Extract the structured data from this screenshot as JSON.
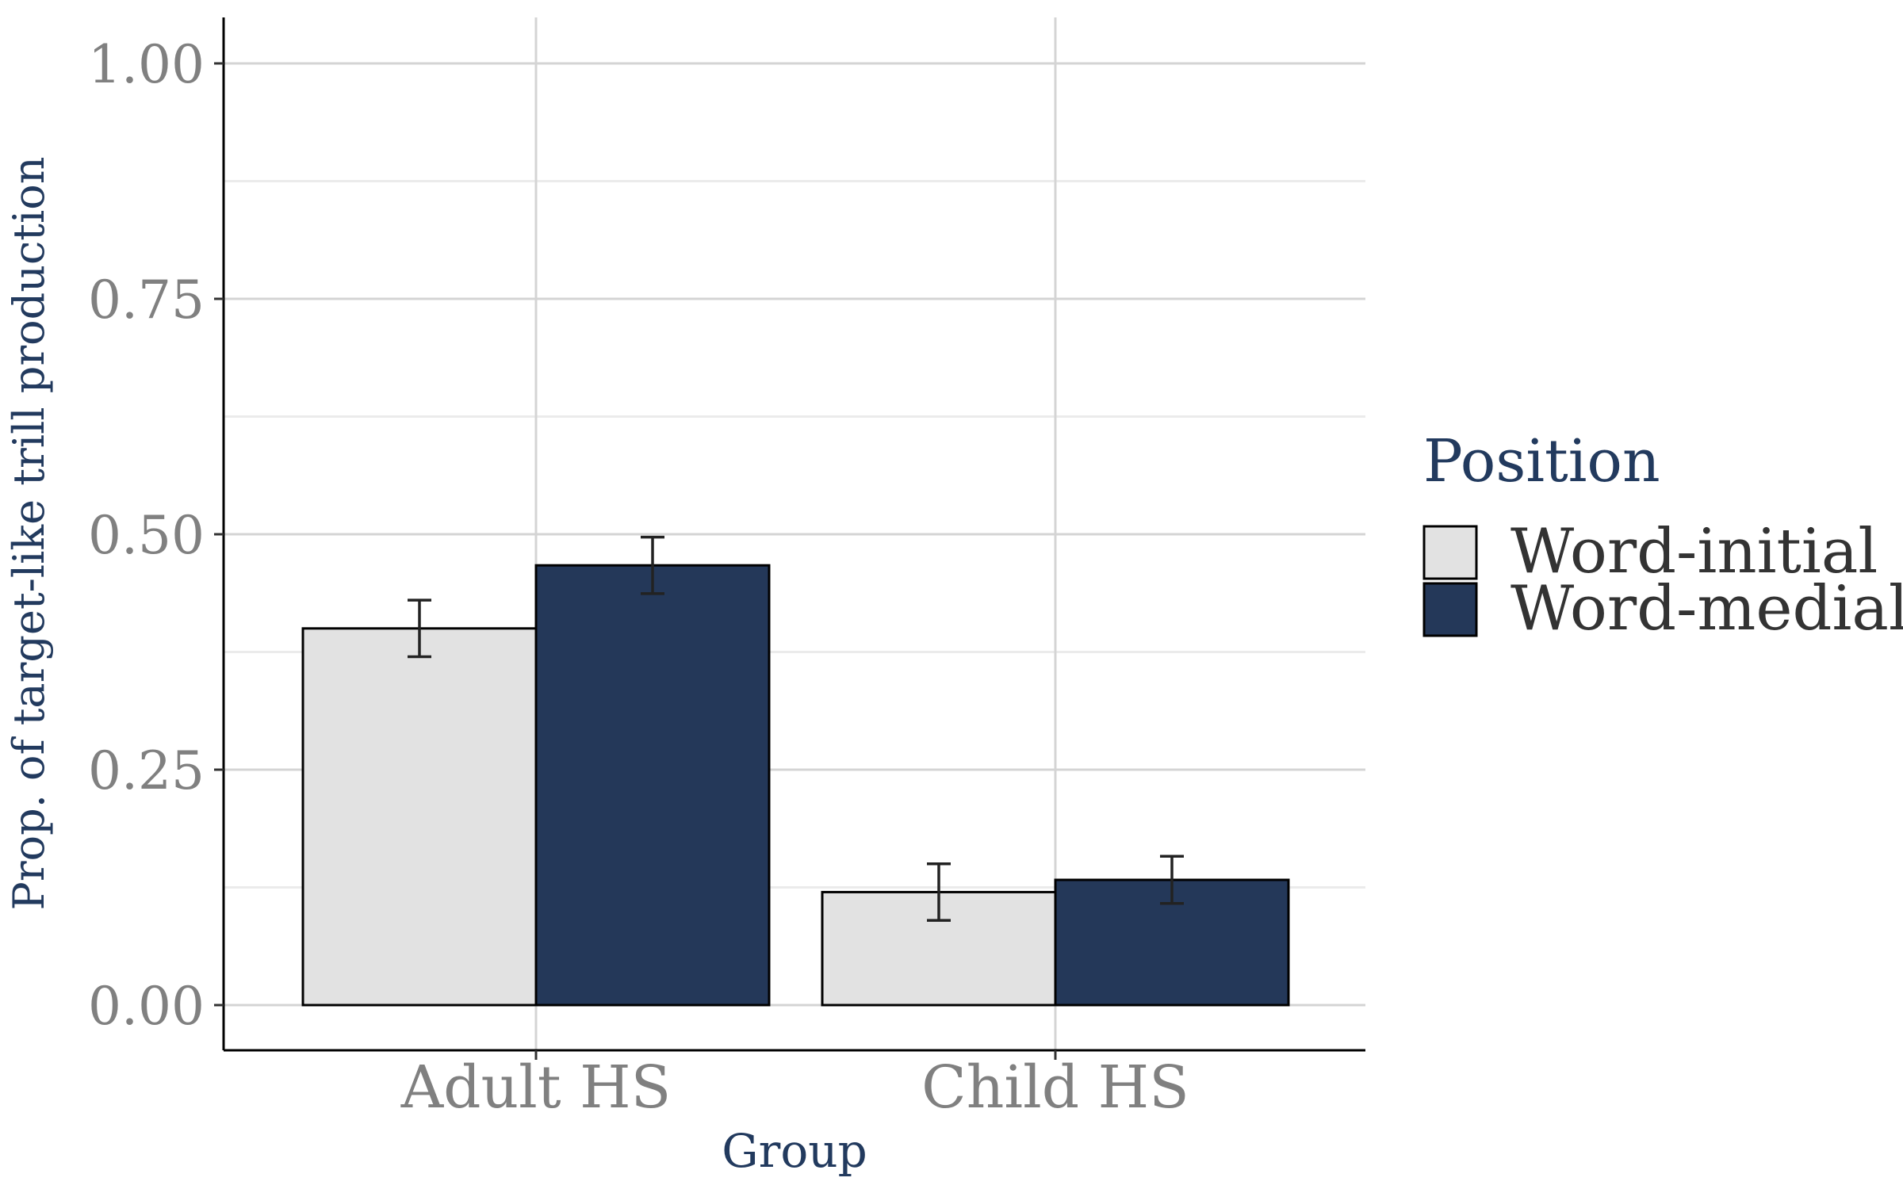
{
  "chart_data": {
    "type": "bar",
    "xlabel": "Group",
    "ylabel": "Prop. of target-like trill production",
    "categories": [
      "Adult HS",
      "Child HS"
    ],
    "yticks": [
      "0.00",
      "0.25",
      "0.50",
      "0.75",
      "1.00"
    ],
    "ylim": [
      -0.05,
      1.05
    ],
    "grid": true,
    "legend": {
      "title": "Position",
      "placement": "right"
    },
    "series": [
      {
        "name": "Word-initial",
        "color": "#e2e2e2",
        "values": [
          0.4,
          0.12
        ],
        "error_low": [
          0.37,
          0.09
        ],
        "error_high": [
          0.43,
          0.15
        ]
      },
      {
        "name": "Word-medial",
        "color": "#243859",
        "values": [
          0.467,
          0.133
        ],
        "error_low": [
          0.437,
          0.108
        ],
        "error_high": [
          0.497,
          0.158
        ]
      }
    ]
  }
}
